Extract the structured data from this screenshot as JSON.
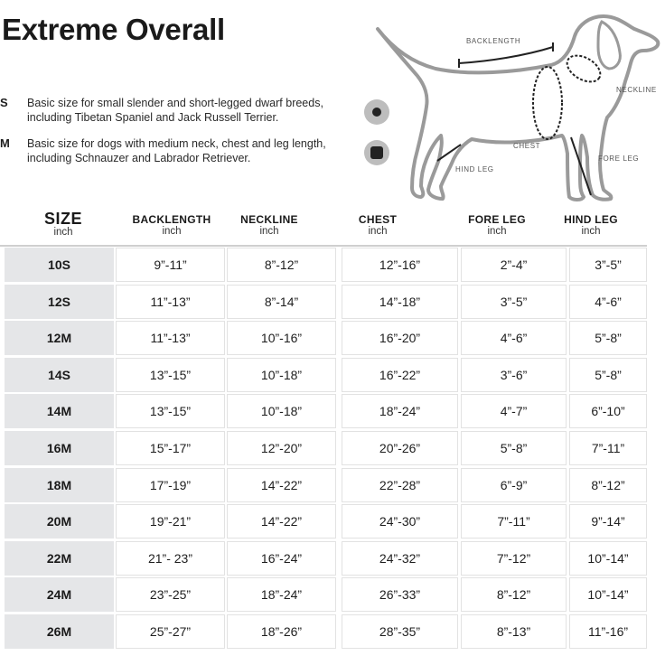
{
  "title": "Extreme Overall",
  "sizes_info": [
    {
      "code": "S",
      "description": "Basic size for small slender and short-legged dwarf breeds, including Tibetan Spaniel and Jack Russell Terrier.",
      "marker": "circle-marker-icon"
    },
    {
      "code": "M",
      "description": "Basic size for dogs with medium neck, chest and leg length, including Schnauzer and Labrador Retriever.",
      "marker": "square-marker-icon"
    }
  ],
  "diagram_labels": {
    "backlength": "BACKLENGTH",
    "neckline": "NECKLINE",
    "chest": "CHEST",
    "fore_leg": "FORE LEG",
    "hind_leg": "HIND LEG"
  },
  "table": {
    "headers": [
      {
        "label": "SIZE",
        "unit": "inch"
      },
      {
        "label": "BACKLENGTH",
        "unit": "inch"
      },
      {
        "label": "NECKLINE",
        "unit": "inch"
      },
      {
        "label": "CHEST",
        "unit": "inch"
      },
      {
        "label": "FORE LEG",
        "unit": "inch"
      },
      {
        "label": "HIND LEG",
        "unit": "inch"
      }
    ],
    "rows": [
      [
        "10S",
        "9”-11”",
        "8”-12”",
        "12”-16”",
        "2”-4”",
        "3”-5”"
      ],
      [
        "12S",
        "11”-13”",
        "8”-14”",
        "14”-18”",
        "3”-5”",
        "4”-6”"
      ],
      [
        "12M",
        "11”-13”",
        "10”-16”",
        "16”-20”",
        "4”-6”",
        "5”-8”"
      ],
      [
        "14S",
        "13”-15”",
        "10”-18”",
        "16”-22”",
        "3”-6”",
        "5”-8”"
      ],
      [
        "14M",
        "13”-15”",
        "10”-18”",
        "18”-24”",
        "4”-7”",
        "6”-10”"
      ],
      [
        "16M",
        "15”-17”",
        "12”-20”",
        "20”-26”",
        "5”-8”",
        "7”-11”"
      ],
      [
        "18M",
        "17”-19”",
        "14”-22”",
        "22”-28”",
        "6”-9”",
        "8”-12”"
      ],
      [
        "20M",
        "19”-21”",
        "14”-22”",
        "24”-30”",
        "7”-11”",
        "9”-14”"
      ],
      [
        "22M",
        "21”- 23”",
        "16”-24”",
        "24”-32”",
        "7”-12”",
        "10”-14”"
      ],
      [
        "24M",
        "23”-25”",
        "18”-24”",
        "26”-33”",
        "8”-12”",
        "10”-14”"
      ],
      [
        "26M",
        "25”-27”",
        "18”-26”",
        "28”-35”",
        "8”-13”",
        "11”-16”"
      ]
    ]
  }
}
